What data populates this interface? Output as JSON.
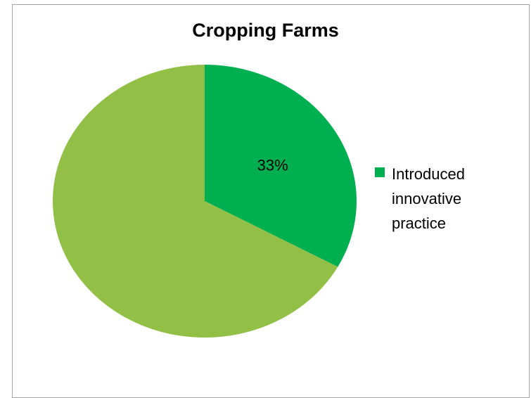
{
  "chart_data": {
    "type": "pie",
    "title": "Cropping Farms",
    "slices": [
      {
        "name": "Introduced innovative practice",
        "value": 33,
        "label": "33%",
        "color": "#00b050"
      },
      {
        "name": "",
        "value": 67,
        "label": "",
        "color": "#92c047"
      }
    ],
    "legend": {
      "position": "right",
      "entries": [
        {
          "label": "Introduced innovative practice",
          "color": "#00b050"
        }
      ]
    }
  }
}
